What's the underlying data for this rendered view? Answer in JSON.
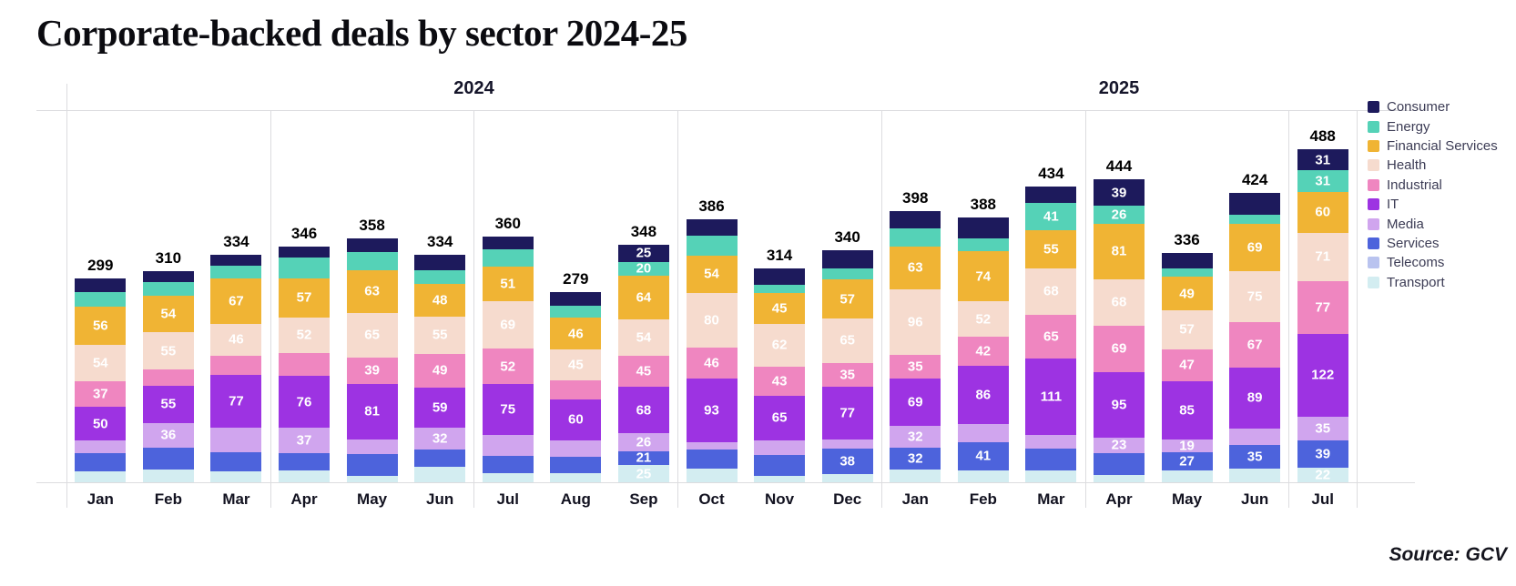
{
  "chart_data": {
    "type": "bar",
    "stacked": true,
    "title": "Corporate-backed deals by sector 2024-25",
    "source_label": "Source: GCV",
    "legend_position": "right",
    "grid": "quarter-separators",
    "groups": [
      {
        "label": "2024",
        "months": 12
      },
      {
        "label": "2025",
        "months": 7
      }
    ],
    "categories": [
      "Jan",
      "Feb",
      "Mar",
      "Apr",
      "May",
      "Jun",
      "Jul",
      "Aug",
      "Sep",
      "Oct",
      "Nov",
      "Dec",
      "Jan",
      "Feb",
      "Mar",
      "Apr",
      "May",
      "Jun",
      "Jul"
    ],
    "totals": [
      299,
      310,
      334,
      346,
      358,
      334,
      360,
      279,
      348,
      386,
      314,
      340,
      398,
      388,
      434,
      444,
      336,
      424,
      488
    ],
    "sectors": [
      {
        "name": "Consumer",
        "color": "#1d1a5c",
        "values": [
          20,
          16,
          17,
          17,
          20,
          23,
          19,
          20,
          25,
          24,
          25,
          27,
          26,
          30,
          24,
          39,
          22,
          32,
          31
        ],
        "labeled": [
          false,
          false,
          false,
          false,
          false,
          false,
          false,
          false,
          true,
          false,
          false,
          false,
          false,
          false,
          false,
          true,
          false,
          false,
          true
        ]
      },
      {
        "name": "Energy",
        "color": "#55d2b7",
        "values": [
          21,
          20,
          18,
          30,
          27,
          20,
          25,
          18,
          20,
          30,
          12,
          16,
          26,
          19,
          41,
          26,
          13,
          13,
          31
        ],
        "labeled": [
          false,
          false,
          false,
          false,
          false,
          false,
          false,
          false,
          true,
          false,
          false,
          false,
          false,
          false,
          true,
          true,
          false,
          false,
          true
        ]
      },
      {
        "name": "Financial Services",
        "color": "#f0b434",
        "values": [
          56,
          54,
          67,
          57,
          63,
          48,
          51,
          46,
          64,
          54,
          45,
          57,
          63,
          74,
          55,
          81,
          49,
          69,
          60
        ],
        "labeled": [
          true,
          true,
          true,
          true,
          true,
          true,
          true,
          true,
          true,
          true,
          true,
          true,
          true,
          true,
          true,
          true,
          true,
          true,
          true
        ]
      },
      {
        "name": "Health",
        "color": "#f6dbce",
        "values": [
          54,
          55,
          46,
          52,
          65,
          55,
          69,
          45,
          54,
          80,
          62,
          65,
          96,
          52,
          68,
          68,
          57,
          75,
          71
        ],
        "labeled": [
          true,
          true,
          true,
          true,
          true,
          true,
          true,
          true,
          true,
          true,
          true,
          true,
          true,
          true,
          true,
          true,
          true,
          true,
          true
        ]
      },
      {
        "name": "Industrial",
        "color": "#ef86c0",
        "values": [
          37,
          23,
          29,
          34,
          39,
          49,
          52,
          28,
          45,
          46,
          43,
          35,
          35,
          42,
          65,
          69,
          47,
          67,
          77
        ],
        "labeled": [
          true,
          false,
          false,
          false,
          true,
          true,
          true,
          false,
          true,
          true,
          true,
          true,
          true,
          true,
          true,
          true,
          true,
          true,
          true
        ]
      },
      {
        "name": "IT",
        "color": "#9d33e2",
        "values": [
          50,
          55,
          77,
          76,
          81,
          59,
          75,
          60,
          68,
          93,
          65,
          77,
          69,
          86,
          111,
          95,
          85,
          89,
          122
        ],
        "labeled": [
          true,
          true,
          true,
          true,
          true,
          true,
          true,
          true,
          true,
          true,
          true,
          true,
          true,
          true,
          true,
          true,
          true,
          true,
          true
        ]
      },
      {
        "name": "Media",
        "color": "#d0a5ee",
        "values": [
          18,
          36,
          36,
          37,
          21,
          32,
          30,
          25,
          26,
          11,
          22,
          13,
          32,
          26,
          21,
          23,
          19,
          24,
          35
        ],
        "labeled": [
          false,
          true,
          false,
          true,
          false,
          true,
          false,
          false,
          true,
          false,
          false,
          false,
          true,
          false,
          false,
          true,
          true,
          false,
          true
        ]
      },
      {
        "name": "Services",
        "color": "#4d63dc",
        "values": [
          27,
          32,
          28,
          26,
          33,
          25,
          25,
          24,
          21,
          28,
          31,
          38,
          32,
          41,
          32,
          32,
          27,
          35,
          39
        ],
        "labeled": [
          false,
          false,
          false,
          false,
          false,
          false,
          false,
          false,
          true,
          false,
          false,
          true,
          true,
          true,
          false,
          false,
          true,
          true,
          true
        ]
      },
      {
        "name": "Telecoms",
        "color": "#b9c3ef",
        "values": [
          0,
          0,
          0,
          0,
          0,
          0,
          0,
          0,
          0,
          0,
          0,
          0,
          0,
          0,
          0,
          0,
          0,
          0,
          0
        ],
        "labeled": [
          false,
          false,
          false,
          false,
          false,
          false,
          false,
          false,
          false,
          false,
          false,
          false,
          false,
          false,
          false,
          false,
          false,
          false,
          false
        ]
      },
      {
        "name": "Transport",
        "color": "#d3edf1",
        "values": [
          16,
          19,
          16,
          17,
          9,
          23,
          14,
          13,
          25,
          20,
          9,
          12,
          19,
          18,
          17,
          11,
          17,
          20,
          22
        ],
        "labeled": [
          false,
          false,
          false,
          false,
          false,
          false,
          false,
          false,
          true,
          false,
          false,
          false,
          false,
          false,
          false,
          false,
          false,
          false,
          true
        ]
      }
    ]
  }
}
